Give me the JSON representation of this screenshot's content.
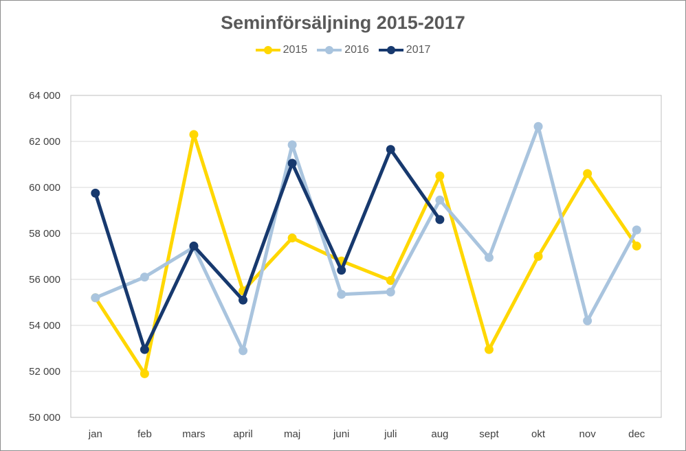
{
  "chart_data": {
    "type": "line",
    "title": "Seminförsäljning 2015-2017",
    "xlabel": "",
    "ylabel": "",
    "categories": [
      "jan",
      "feb",
      "mars",
      "april",
      "maj",
      "juni",
      "juli",
      "aug",
      "sept",
      "okt",
      "nov",
      "dec"
    ],
    "ylim": [
      50000,
      64000
    ],
    "yticks": [
      50000,
      52000,
      54000,
      56000,
      58000,
      60000,
      62000,
      64000
    ],
    "ytick_labels": [
      "50 000",
      "52 000",
      "54 000",
      "56 000",
      "58 000",
      "60 000",
      "62 000",
      "64 000"
    ],
    "grid": true,
    "legend_position": "top",
    "series": [
      {
        "name": "2015",
        "color": "#FFD700",
        "values": [
          55200,
          51900,
          62300,
          55500,
          57800,
          56800,
          55950,
          60500,
          52950,
          57000,
          60600,
          57450
        ]
      },
      {
        "name": "2016",
        "color": "#A9C4DE",
        "values": [
          55200,
          56100,
          57400,
          52900,
          61850,
          55350,
          55450,
          59450,
          56950,
          62650,
          54200,
          58150
        ]
      },
      {
        "name": "2017",
        "color": "#17396E",
        "values": [
          59750,
          52950,
          57450,
          55100,
          61050,
          56400,
          61650,
          58600,
          null,
          null,
          null,
          null
        ]
      }
    ]
  }
}
